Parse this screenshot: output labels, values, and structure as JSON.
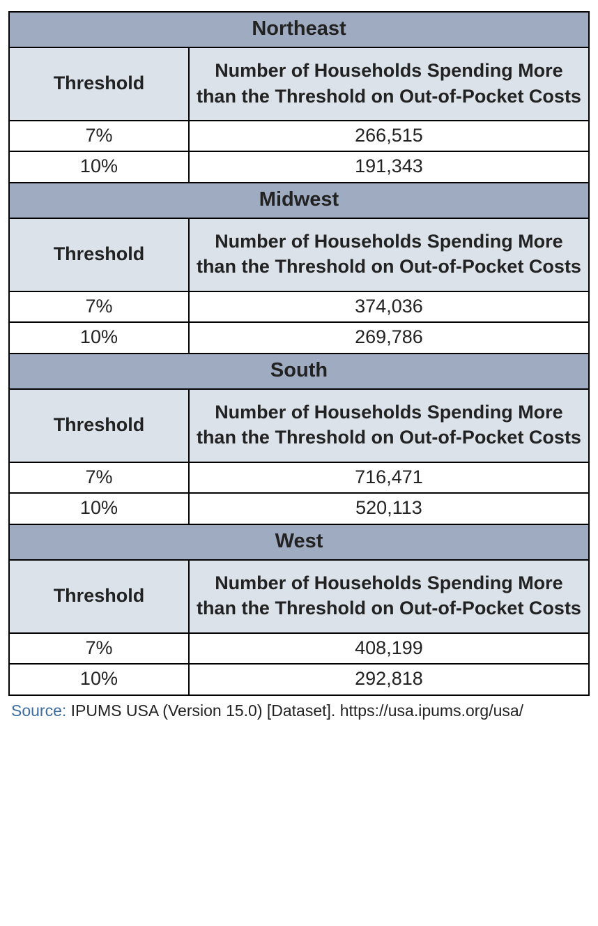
{
  "colors": {
    "region_bg": "#9fabc0",
    "header_bg": "#dbe2ea",
    "row_bg": "#ffffff",
    "border": "#000000",
    "text": "#222222",
    "source_label": "#3d6ca0"
  },
  "columns": {
    "threshold": "Threshold",
    "households": "Number of Households Spending More than the Threshold on Out-of-Pocket Costs"
  },
  "regions": [
    {
      "name": "Northeast",
      "rows": [
        {
          "threshold": "7%",
          "households": "266,515"
        },
        {
          "threshold": "10%",
          "households": "191,343"
        }
      ]
    },
    {
      "name": "Midwest",
      "rows": [
        {
          "threshold": "7%",
          "households": "374,036"
        },
        {
          "threshold": "10%",
          "households": "269,786"
        }
      ]
    },
    {
      "name": "South",
      "rows": [
        {
          "threshold": "7%",
          "households": "716,471"
        },
        {
          "threshold": "10%",
          "households": "520,113"
        }
      ]
    },
    {
      "name": "West",
      "rows": [
        {
          "threshold": "7%",
          "households": "408,199"
        },
        {
          "threshold": "10%",
          "households": "292,818"
        }
      ]
    }
  ],
  "source": {
    "label": "Source:",
    "text": "IPUMS USA (Version 15.0) [Dataset]. https://usa.ipums.org/usa/"
  }
}
